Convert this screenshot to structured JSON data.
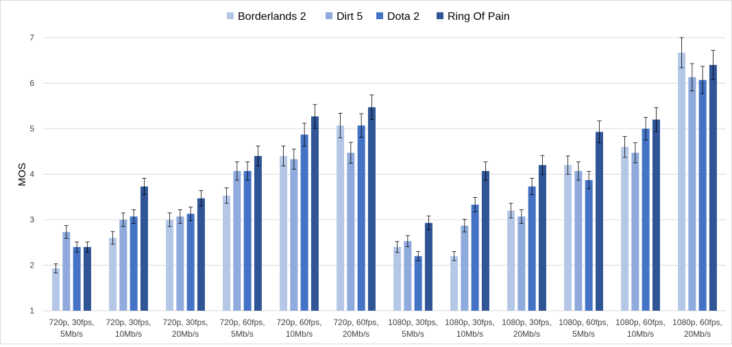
{
  "chart_data": {
    "type": "bar",
    "title": "",
    "xlabel": "",
    "ylabel": "MOS",
    "ylim": [
      1,
      7
    ],
    "yticks": [
      1,
      2,
      3,
      4,
      5,
      6,
      7
    ],
    "grid": true,
    "legend_position": "top",
    "error_bars": true,
    "categories": [
      [
        "720p, 30fps,",
        "5Mb/s"
      ],
      [
        "720p, 30fps,",
        "10Mb/s"
      ],
      [
        "720p, 30fps,",
        "20Mb/s"
      ],
      [
        "720p, 60fps,",
        "5Mb/s"
      ],
      [
        "720p, 60fps,",
        "10Mb/s"
      ],
      [
        "720p, 60fps,",
        "20Mb/s"
      ],
      [
        "1080p, 30fps,",
        "5Mb/s"
      ],
      [
        "1080p, 30fps,",
        "10Mb/s"
      ],
      [
        "1080p, 30fps,",
        "20Mb/s"
      ],
      [
        "1080p, 60fps,",
        "5Mb/s"
      ],
      [
        "1080p, 60fps,",
        "10Mb/s"
      ],
      [
        "1080p, 60fps,",
        "20Mb/s"
      ]
    ],
    "series": [
      {
        "name": "Borderlands 2",
        "color": "#b4c7e7",
        "values": [
          1.93,
          2.6,
          3.0,
          3.53,
          4.4,
          5.07,
          2.4,
          2.2,
          3.2,
          4.2,
          4.6,
          6.67
        ],
        "errors": [
          0.1,
          0.14,
          0.15,
          0.17,
          0.22,
          0.27,
          0.12,
          0.1,
          0.16,
          0.2,
          0.23,
          0.33
        ]
      },
      {
        "name": "Dirt 5",
        "color": "#8faadc",
        "values": [
          2.73,
          3.0,
          3.07,
          4.07,
          4.33,
          4.47,
          2.53,
          2.87,
          3.07,
          4.07,
          4.47,
          6.13
        ],
        "errors": [
          0.14,
          0.15,
          0.15,
          0.2,
          0.22,
          0.23,
          0.12,
          0.14,
          0.15,
          0.2,
          0.22,
          0.3
        ]
      },
      {
        "name": "Dota 2",
        "color": "#4472c4",
        "values": [
          2.4,
          3.07,
          3.13,
          4.07,
          4.87,
          5.07,
          2.2,
          3.33,
          3.73,
          3.87,
          5.0,
          6.07
        ],
        "errors": [
          0.11,
          0.15,
          0.15,
          0.2,
          0.25,
          0.26,
          0.1,
          0.16,
          0.18,
          0.19,
          0.25,
          0.3
        ]
      },
      {
        "name": "Ring Of Pain",
        "color": "#2f5597",
        "values": [
          2.4,
          3.73,
          3.47,
          4.4,
          5.27,
          5.47,
          2.93,
          4.07,
          4.2,
          4.93,
          5.2,
          6.4
        ],
        "errors": [
          0.11,
          0.18,
          0.17,
          0.22,
          0.26,
          0.27,
          0.15,
          0.2,
          0.21,
          0.24,
          0.26,
          0.32
        ]
      }
    ]
  }
}
